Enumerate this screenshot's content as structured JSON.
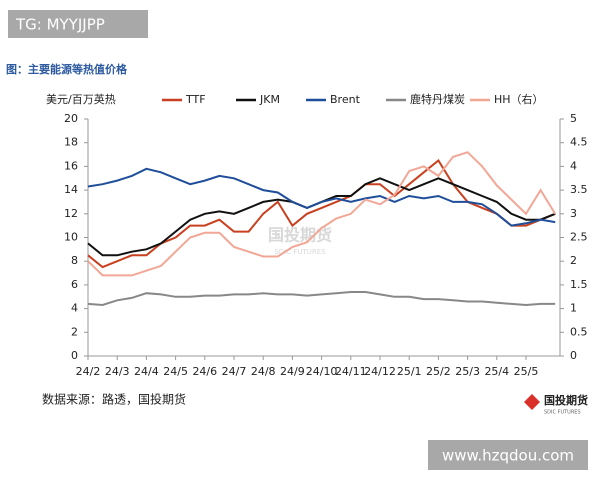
{
  "header": {
    "tag": "TG: MYYJJPP",
    "caption": "图：主要能源等热值价格"
  },
  "chart_data": {
    "type": "line",
    "ylabel": "美元/百万英热",
    "watermark": "国投期货",
    "watermark_sub": "SDIC FUTURES",
    "categories": [
      "24/2",
      null,
      "24/3",
      null,
      "24/4",
      null,
      "24/5",
      null,
      "24/6",
      null,
      "24/7",
      null,
      "24/8",
      null,
      "24/9",
      null,
      "24/10",
      null,
      "24/11",
      null,
      "24/12",
      null,
      "25/1",
      null,
      "25/2",
      null,
      "25/3",
      null,
      "25/4",
      null,
      "25/5",
      null,
      null
    ],
    "series": [
      {
        "name": "TTF",
        "color": "#c8401f",
        "values": [
          8.5,
          7.5,
          8,
          8.5,
          8.5,
          9.5,
          10,
          11,
          11,
          11.5,
          10.5,
          10.5,
          12,
          13,
          11,
          12,
          12.5,
          13,
          13.5,
          14.5,
          14.5,
          13.5,
          14.5,
          15.5,
          16.5,
          14.5,
          13,
          12.5,
          12,
          11,
          11,
          11.5,
          12
        ]
      },
      {
        "name": "JKM",
        "color": "#111111",
        "values": [
          9.5,
          8.5,
          8.5,
          8.8,
          9,
          9.5,
          10.5,
          11.5,
          12,
          12.2,
          12,
          12.5,
          13,
          13.2,
          13,
          12.5,
          13,
          13.5,
          13.5,
          14.5,
          15,
          14.5,
          14,
          14.5,
          15,
          14.5,
          14,
          13.5,
          13,
          12,
          11.5,
          11.5,
          12
        ]
      },
      {
        "name": "Brent",
        "color": "#1f4e9a",
        "values": [
          14.3,
          14.5,
          14.8,
          15.2,
          15.8,
          15.5,
          15,
          14.5,
          14.8,
          15.2,
          15,
          14.5,
          14,
          13.8,
          13,
          12.5,
          13,
          13.3,
          13,
          13.3,
          13.5,
          13,
          13.5,
          13.3,
          13.5,
          13,
          13,
          12.8,
          12,
          11,
          11.2,
          11.5,
          11.3
        ]
      },
      {
        "name": "鹿特丹煤炭",
        "color": "#888888",
        "values": [
          4.4,
          4.3,
          4.7,
          4.9,
          5.3,
          5.2,
          5.0,
          5.0,
          5.1,
          5.1,
          5.2,
          5.2,
          5.3,
          5.2,
          5.2,
          5.1,
          5.2,
          5.3,
          5.4,
          5.4,
          5.2,
          5.0,
          5.0,
          4.8,
          4.8,
          4.7,
          4.6,
          4.6,
          4.5,
          4.4,
          4.3,
          4.4,
          4.4
        ]
      },
      {
        "name": "HH（右）",
        "color": "#f2a796",
        "axis": "y2",
        "values": [
          2.0,
          1.7,
          1.7,
          1.7,
          1.8,
          1.9,
          2.2,
          2.5,
          2.6,
          2.6,
          2.3,
          2.2,
          2.1,
          2.1,
          2.3,
          2.4,
          2.7,
          2.9,
          3.0,
          3.3,
          3.2,
          3.4,
          3.9,
          4.0,
          3.8,
          4.2,
          4.3,
          4.0,
          3.6,
          3.3,
          3.0,
          3.5,
          3.0
        ]
      }
    ],
    "ylim": [
      0,
      20
    ],
    "yticks": [
      0,
      2,
      4,
      6,
      8,
      10,
      12,
      14,
      16,
      18,
      20
    ],
    "y2lim": [
      0,
      5
    ],
    "y2ticks": [
      0,
      0.5,
      1,
      1.5,
      2,
      2.5,
      3,
      3.5,
      4,
      4.5,
      5
    ]
  },
  "footer": {
    "source": "数据来源：路透，国投期货",
    "logo": "国投期货",
    "logo_sub": "SDIC FUTURES",
    "url": "www.hzqdou.com"
  }
}
